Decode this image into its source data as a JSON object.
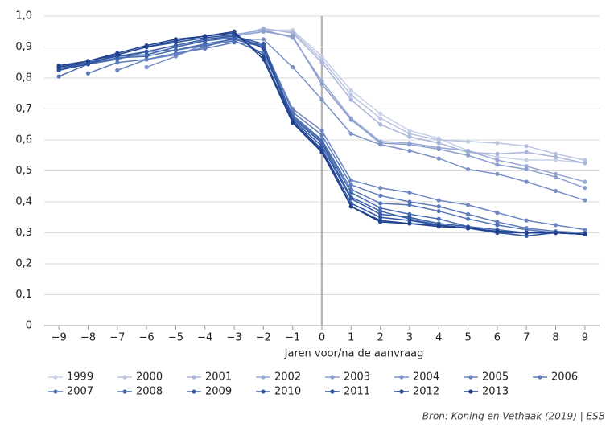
{
  "chart_data": {
    "type": "line",
    "x": [
      -9,
      -8,
      -7,
      -6,
      -5,
      -4,
      -3,
      -2,
      -1,
      0,
      1,
      2,
      3,
      4,
      5,
      6,
      7,
      8,
      9
    ],
    "xlabel": "Jaren voor/na de aanvraag",
    "xlim": [
      -9.5,
      9.5
    ],
    "xticks": [
      {
        "value": -9,
        "label": "−9"
      },
      {
        "value": -8,
        "label": "−8"
      },
      {
        "value": -7,
        "label": "−7"
      },
      {
        "value": -6,
        "label": "−6"
      },
      {
        "value": -5,
        "label": "−5"
      },
      {
        "value": -4,
        "label": "−4"
      },
      {
        "value": -3,
        "label": "−3"
      },
      {
        "value": -2,
        "label": "−2"
      },
      {
        "value": -1,
        "label": "−1"
      },
      0,
      1,
      2,
      3,
      4,
      5,
      6,
      7,
      8,
      9
    ],
    "ylim": [
      0,
      1
    ],
    "yticks": [
      0,
      {
        "value": 0.1,
        "label": "0,1"
      },
      {
        "value": 0.2,
        "label": "0,2"
      },
      {
        "value": 0.3,
        "label": "0,3"
      },
      {
        "value": 0.4,
        "label": "0,4"
      },
      {
        "value": 0.5,
        "label": "0,5"
      },
      {
        "value": 0.6,
        "label": "0,6"
      },
      {
        "value": 0.7,
        "label": "0,7"
      },
      {
        "value": 0.8,
        "label": "0,8"
      },
      {
        "value": 0.9,
        "label": "0,9"
      },
      {
        "value": 1.0,
        "label": "1,0"
      }
    ],
    "grid": true,
    "reference_line_x": 0,
    "series": [
      {
        "name": "1999",
        "color": "#c8d0e8",
        "values": [
          null,
          null,
          null,
          null,
          null,
          null,
          null,
          0.955,
          0.955,
          0.87,
          0.76,
          0.685,
          0.63,
          0.605,
          0.565,
          0.545,
          0.535,
          0.535,
          0.525
        ]
      },
      {
        "name": "2000",
        "color": "#b9c3e2",
        "values": [
          null,
          null,
          null,
          null,
          null,
          null,
          null,
          0.955,
          0.95,
          0.86,
          0.745,
          0.67,
          0.62,
          0.6,
          0.595,
          0.59,
          0.58,
          0.555,
          0.535
        ]
      },
      {
        "name": "2001",
        "color": "#a9b6db",
        "values": [
          null,
          null,
          null,
          null,
          null,
          null,
          0.935,
          0.96,
          0.945,
          0.85,
          0.73,
          0.65,
          0.61,
          0.59,
          0.56,
          0.555,
          0.56,
          0.545,
          0.525
        ]
      },
      {
        "name": "2002",
        "color": "#99aad4",
        "values": [
          null,
          null,
          null,
          null,
          null,
          0.92,
          0.94,
          0.955,
          0.93,
          0.79,
          0.67,
          0.595,
          0.59,
          0.575,
          0.565,
          0.535,
          0.515,
          0.49,
          0.465
        ]
      },
      {
        "name": "2003",
        "color": "#8a9ecd",
        "values": [
          null,
          null,
          null,
          null,
          0.9,
          0.92,
          0.935,
          0.95,
          0.935,
          0.78,
          0.665,
          0.59,
          0.585,
          0.57,
          0.55,
          0.52,
          0.505,
          0.48,
          0.445
        ]
      },
      {
        "name": "2004",
        "color": "#7c92c7",
        "values": [
          null,
          null,
          null,
          0.835,
          0.87,
          0.91,
          0.925,
          0.925,
          0.835,
          0.73,
          0.62,
          0.585,
          0.565,
          0.54,
          0.505,
          0.49,
          0.465,
          0.435,
          0.405
        ]
      },
      {
        "name": "2005",
        "color": "#6d86c1",
        "values": [
          null,
          null,
          0.825,
          0.86,
          0.875,
          0.9,
          0.93,
          0.9,
          0.7,
          0.63,
          0.47,
          0.445,
          0.43,
          0.405,
          0.39,
          0.365,
          0.34,
          0.325,
          0.31
        ]
      },
      {
        "name": "2006",
        "color": "#5e7cbb",
        "values": [
          null,
          0.815,
          0.85,
          0.86,
          0.88,
          0.895,
          0.915,
          0.905,
          0.69,
          0.615,
          0.455,
          0.42,
          0.4,
          0.385,
          0.36,
          0.335,
          0.315,
          0.305,
          0.3
        ]
      },
      {
        "name": "2007",
        "color": "#5273b6",
        "values": [
          0.805,
          0.845,
          0.86,
          0.885,
          0.89,
          0.905,
          0.92,
          0.88,
          0.68,
          0.6,
          0.44,
          0.395,
          0.39,
          0.37,
          0.345,
          0.325,
          0.31,
          0.3,
          0.295
        ]
      },
      {
        "name": "2008",
        "color": "#466ab0",
        "values": [
          0.83,
          0.845,
          0.865,
          0.87,
          0.89,
          0.91,
          0.925,
          0.9,
          0.675,
          0.595,
          0.43,
          0.38,
          0.36,
          0.345,
          0.32,
          0.31,
          0.3,
          0.3,
          0.295
        ]
      },
      {
        "name": "2009",
        "color": "#3d62aa",
        "values": [
          0.835,
          0.85,
          0.87,
          0.875,
          0.9,
          0.92,
          0.93,
          0.905,
          0.67,
          0.59,
          0.415,
          0.37,
          0.345,
          0.325,
          0.315,
          0.305,
          0.3,
          0.3,
          0.295
        ]
      },
      {
        "name": "2010",
        "color": "#345aa4",
        "values": [
          0.83,
          0.85,
          0.87,
          0.885,
          0.905,
          0.925,
          0.935,
          0.91,
          0.665,
          0.58,
          0.41,
          0.36,
          0.35,
          0.33,
          0.32,
          0.3,
          0.29,
          0.3,
          0.295
        ]
      },
      {
        "name": "2011",
        "color": "#2b519d",
        "values": [
          0.825,
          0.845,
          0.875,
          0.9,
          0.915,
          0.93,
          0.94,
          0.895,
          0.66,
          0.57,
          0.395,
          0.35,
          0.34,
          0.325,
          0.315,
          0.3,
          0.3,
          0.3,
          0.295
        ]
      },
      {
        "name": "2012",
        "color": "#244895",
        "values": [
          0.835,
          0.855,
          0.875,
          0.9,
          0.92,
          0.935,
          0.945,
          0.87,
          0.66,
          0.565,
          0.385,
          0.34,
          0.33,
          0.325,
          0.315,
          0.305,
          0.3,
          0.3,
          0.295
        ]
      },
      {
        "name": "2013",
        "color": "#1e3f8c",
        "values": [
          0.84,
          0.855,
          0.88,
          0.905,
          0.925,
          0.935,
          0.95,
          0.86,
          0.655,
          0.56,
          0.385,
          0.335,
          0.33,
          0.32,
          0.315,
          0.305,
          0.3,
          0.3,
          0.295
        ]
      }
    ],
    "source": "Bron: Koning en Vethaak (2019) | ESB"
  }
}
